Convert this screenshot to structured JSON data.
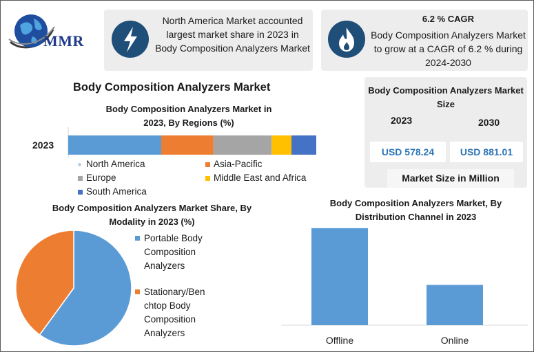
{
  "logo": {
    "text": "MMR",
    "icon": "globe-icon"
  },
  "info_left": {
    "icon": "lightning-bolt-icon",
    "text": "North America Market accounted largest market share in 2023 in Body Composition Analyzers Market"
  },
  "info_right": {
    "icon": "flame-icon",
    "title": "6.2 % CAGR",
    "text": "Body Composition Analyzers Market to grow at a CAGR of 6.2 % during 2024-2030"
  },
  "main_title": "Body Composition Analyzers Market",
  "market_size": {
    "title": "Body Composition Analyzers Market Size",
    "year1": "2023",
    "year2": "2030",
    "value1": "USD 578.24",
    "value2": "USD 881.01",
    "unit_label": "Market Size in Million"
  },
  "colors": {
    "blue": "#5b9bd5",
    "orange": "#ed7d31",
    "gray": "#a5a5a5",
    "yellow": "#ffc000",
    "dark_blue": "#4472c4",
    "icon_circle": "#1f4e79",
    "value_text": "#2e75b6"
  },
  "chart_data": [
    {
      "type": "bar",
      "orientation": "horizontal-stacked",
      "title": "Body Composition Analyzers Market in 2023, By Regions (%)",
      "categories": [
        "2023"
      ],
      "series": [
        {
          "name": "North America",
          "values": [
            37.5
          ]
        },
        {
          "name": "Asia-Pacific",
          "values": [
            21
          ]
        },
        {
          "name": "Europe",
          "values": [
            23.5
          ]
        },
        {
          "name": "Middle East and Africa",
          "values": [
            8
          ]
        },
        {
          "name": "South America",
          "values": [
            10
          ]
        }
      ],
      "xlim": [
        0,
        100
      ],
      "legend": "bottom",
      "grid": false
    },
    {
      "type": "pie",
      "title": "Body Composition Analyzers Market Share, By Modality in 2023  (%)",
      "labels": [
        "Portable Body Composition Analyzers",
        "Stationary/Benchtop Body Composition Analyzers"
      ],
      "legend_lines": [
        [
          "Portable Body",
          "Composition",
          "Analyzers"
        ],
        [
          "Stationary/Ben",
          "chtop Body",
          "Composition",
          "Analyzers"
        ]
      ],
      "values": [
        60,
        40
      ],
      "legend": "right"
    },
    {
      "type": "bar",
      "title": "Body Composition Analyzers Market, By Distribution Channel in 2023",
      "categories": [
        "Offline",
        "Online"
      ],
      "values": [
        65,
        27
      ],
      "ylim": [
        0,
        70
      ],
      "grid": false
    }
  ]
}
